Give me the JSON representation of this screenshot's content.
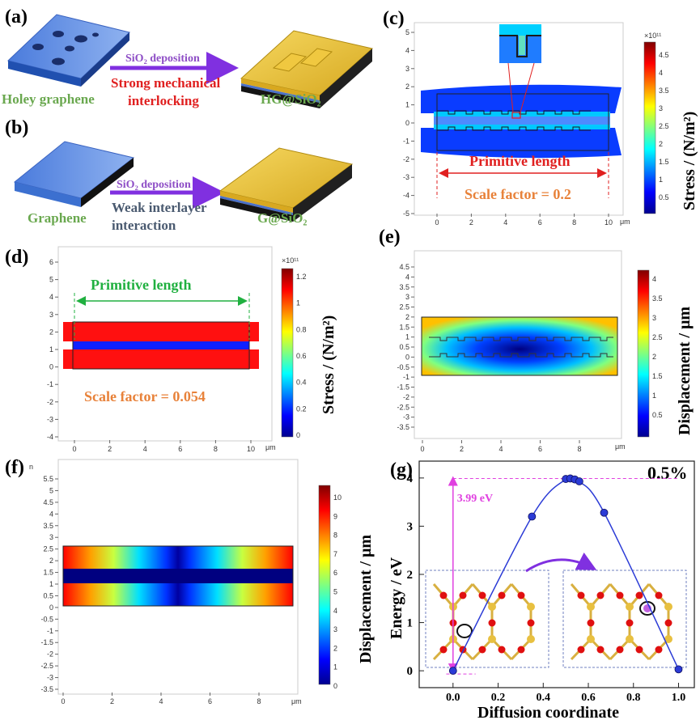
{
  "panel_a": {
    "label": "(a)",
    "left_caption": "Holey graphene",
    "arrow_text": "SiO₂ deposition",
    "effect_line1": "Strong mechanical",
    "effect_line2": "interlocking",
    "right_caption": "HG@SiO₂"
  },
  "panel_b": {
    "label": "(b)",
    "left_caption": "Graphene",
    "arrow_text": "SiO₂ deposition",
    "effect_line1": "Weak interlayer",
    "effect_line2": "interaction",
    "right_caption": "G@SiO₂"
  },
  "panel_c": {
    "label": "(c)",
    "y_ticks": [
      "5",
      "4",
      "3",
      "2",
      "1",
      "0",
      "-1",
      "-2",
      "-3",
      "-4",
      "-5"
    ],
    "x_ticks": [
      "0",
      "2",
      "4",
      "6",
      "8",
      "10"
    ],
    "x_unit": "μm",
    "dimension_label": "Primitive length",
    "scale_text": "Scale factor = 0.2",
    "colorbar_exponent": "×10¹¹",
    "colorbar_ticks": [
      "4.5",
      "4",
      "3.5",
      "3",
      "2.5",
      "2",
      "1.5",
      "1",
      "0.5"
    ],
    "colorbar_title": "Stress / (N/m²)"
  },
  "panel_d": {
    "label": "(d)",
    "y_ticks": [
      "6",
      "5",
      "4",
      "3",
      "2",
      "1",
      "0",
      "-1",
      "-2",
      "-3",
      "-4"
    ],
    "x_ticks": [
      "0",
      "2",
      "4",
      "6",
      "8",
      "10"
    ],
    "x_unit": "μm",
    "dimension_label": "Primitive length",
    "scale_text": "Scale factor = 0.054",
    "colorbar_exponent": "×10¹¹",
    "colorbar_ticks": [
      "1.2",
      "1",
      "0.8",
      "0.6",
      "0.4",
      "0.2",
      "0"
    ],
    "colorbar_title": "Stress / (N/m²)"
  },
  "panel_e": {
    "label": "(e)",
    "y_ticks": [
      "4.5",
      "4",
      "3.5",
      "3",
      "2.5",
      "2",
      "1.5",
      "1",
      "0.5",
      "0",
      "-0.5",
      "-1",
      "-1.5",
      "-2",
      "-2.5",
      "-3",
      "-3.5"
    ],
    "x_ticks": [
      "0",
      "2",
      "4",
      "6",
      "8"
    ],
    "x_unit": "μm",
    "colorbar_ticks": [
      "4",
      "3.5",
      "3",
      "2.5",
      "2",
      "1.5",
      "1",
      "0.5"
    ],
    "colorbar_title": "Displacement / μm"
  },
  "panel_f": {
    "label": "(f)",
    "y_unit": "n",
    "y_ticks": [
      "5.5",
      "5",
      "4.5",
      "4",
      "3.5",
      "3",
      "2.5",
      "2",
      "1.5",
      "1",
      "0.5",
      "0",
      "-0.5",
      "-1",
      "-1.5",
      "-2",
      "-2.5",
      "-3",
      "-3.5"
    ],
    "x_ticks": [
      "0",
      "2",
      "4",
      "6",
      "8"
    ],
    "x_unit": "μm",
    "colorbar_ticks": [
      "10",
      "9",
      "8",
      "7",
      "6",
      "5",
      "4",
      "3",
      "2",
      "1",
      "0"
    ],
    "colorbar_title": "Displacement / μm"
  },
  "panel_g": {
    "label": "(g)",
    "strain_label": "0.5%",
    "barrier_label": "3.99 eV"
  },
  "chart_data": {
    "type": "line",
    "xlabel": "Diffusion coordinate",
    "ylabel": "Energy / eV",
    "xlim": [
      -0.15,
      1.07
    ],
    "ylim": [
      -0.35,
      4.35
    ],
    "x_ticks": [
      "0.0",
      "0.2",
      "0.4",
      "0.6",
      "0.8",
      "1.0"
    ],
    "y_ticks": [
      "0",
      "1",
      "2",
      "3",
      "4"
    ],
    "series": [
      {
        "x": [
          0.0,
          0.35,
          0.5,
          0.52,
          0.54,
          0.56,
          0.67,
          1.0
        ],
        "y": [
          0.0,
          3.2,
          3.98,
          3.99,
          3.97,
          3.93,
          3.28,
          0.03
        ]
      }
    ],
    "colors": {
      "line": "#2b3bd6",
      "marker": "#2b3bd6",
      "guide": "#e040e0"
    }
  }
}
